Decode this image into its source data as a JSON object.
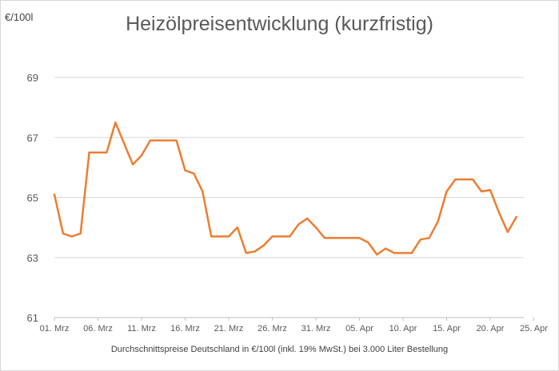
{
  "chart_data": {
    "type": "line",
    "title": "Heizölpreisentwicklung (kurzfristig)",
    "ylabel": "€/100l",
    "xlabel": "Durchschnittspreise Deutschland in €/100l (inkl. 19% MwSt.) bei 3.000 Liter Bestellung",
    "ylim": [
      61,
      69
    ],
    "yticks": [
      61,
      63,
      65,
      67,
      69
    ],
    "x_tick_labels": [
      "01. Mrz",
      "06. Mrz",
      "11. Mrz",
      "16. Mrz",
      "21. Mrz",
      "26. Mrz",
      "31. Mrz",
      "05. Apr",
      "10. Apr",
      "15. Apr",
      "20. Apr",
      "25. Apr"
    ],
    "grid": true,
    "series_color": "#ED7D31",
    "series": [
      {
        "x": [
          "01. Mrz",
          "02. Mrz",
          "03. Mrz",
          "04. Mrz",
          "05. Mrz",
          "06. Mrz",
          "07. Mrz",
          "08. Mrz",
          "09. Mrz",
          "10. Mrz",
          "11. Mrz",
          "12. Mrz",
          "13. Mrz",
          "14. Mrz",
          "15. Mrz",
          "16. Mrz",
          "17. Mrz",
          "18. Mrz",
          "19. Mrz",
          "20. Mrz",
          "21. Mrz",
          "22. Mrz",
          "23. Mrz",
          "24. Mrz",
          "25. Mrz",
          "26. Mrz",
          "27. Mrz",
          "28. Mrz",
          "29. Mrz",
          "30. Mrz",
          "31. Mrz",
          "01. Apr",
          "02. Apr",
          "03. Apr",
          "04. Apr",
          "05. Apr",
          "06. Apr",
          "07. Apr",
          "08. Apr",
          "09. Apr",
          "10. Apr",
          "11. Apr",
          "12. Apr",
          "13. Apr",
          "14. Apr",
          "15. Apr",
          "16. Apr",
          "17. Apr",
          "18. Apr",
          "19. Apr",
          "20. Apr",
          "21. Apr",
          "22. Apr",
          "23. Apr"
        ],
        "values": [
          65.1,
          63.8,
          63.7,
          63.8,
          66.5,
          66.5,
          66.5,
          67.5,
          66.8,
          66.1,
          66.4,
          66.9,
          66.9,
          66.9,
          66.9,
          65.9,
          65.8,
          65.2,
          63.7,
          63.7,
          63.7,
          64.0,
          63.15,
          63.2,
          63.4,
          63.7,
          63.7,
          63.7,
          64.1,
          64.3,
          64.0,
          63.65,
          63.65,
          63.65,
          63.65,
          63.65,
          63.5,
          63.1,
          63.3,
          63.15,
          63.15,
          63.15,
          63.6,
          63.65,
          64.2,
          65.2,
          65.6,
          65.6,
          65.6,
          65.2,
          65.25,
          64.5,
          63.85,
          64.35
        ]
      }
    ]
  }
}
